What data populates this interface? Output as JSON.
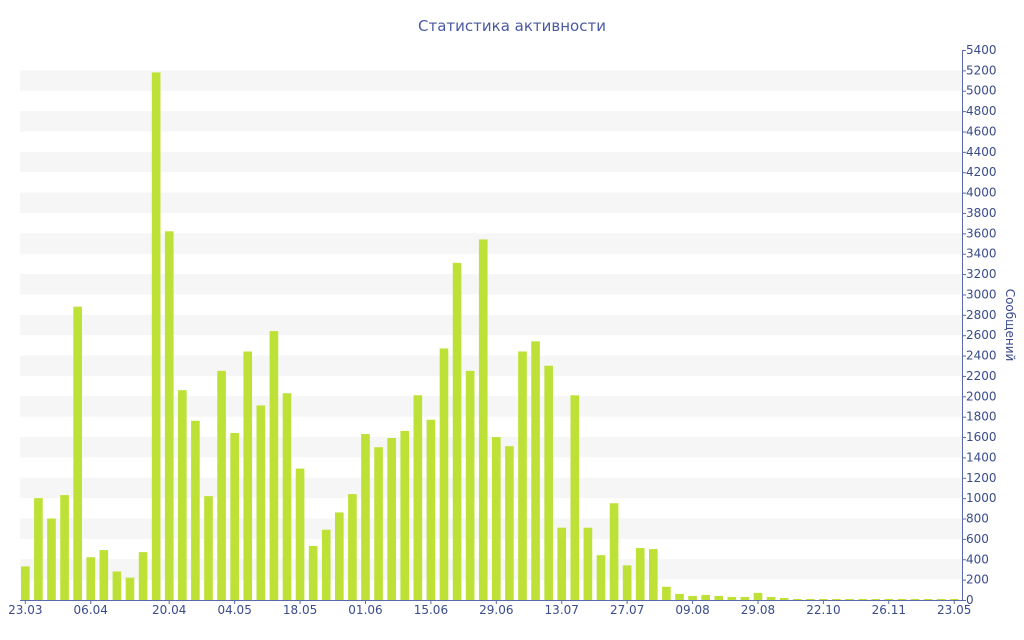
{
  "chart_data": {
    "type": "bar",
    "title": "Статистика активности",
    "ylabel": "Сообщений",
    "xlabel": "",
    "ylim": [
      0,
      5400
    ],
    "y_ticks": [
      0,
      200,
      400,
      600,
      800,
      1000,
      1200,
      1400,
      1600,
      1800,
      2000,
      2200,
      2400,
      2600,
      2800,
      3000,
      3200,
      3400,
      3600,
      3800,
      4000,
      4200,
      4400,
      4600,
      4800,
      5000,
      5200,
      5400
    ],
    "y_axis_side": "right",
    "x_tick_labels": [
      {
        "label": "23.03",
        "index": 0
      },
      {
        "label": "06.04",
        "index": 5
      },
      {
        "label": "20.04",
        "index": 11
      },
      {
        "label": "04.05",
        "index": 16
      },
      {
        "label": "18.05",
        "index": 21
      },
      {
        "label": "01.06",
        "index": 26
      },
      {
        "label": "15.06",
        "index": 31
      },
      {
        "label": "29.06",
        "index": 36
      },
      {
        "label": "13.07",
        "index": 41
      },
      {
        "label": "27.07",
        "index": 46
      },
      {
        "label": "09.08",
        "index": 51
      },
      {
        "label": "29.08",
        "index": 56
      },
      {
        "label": "22.10",
        "index": 61
      },
      {
        "label": "26.11",
        "index": 66
      },
      {
        "label": "23.05",
        "index": 71
      }
    ],
    "values": [
      330,
      1000,
      800,
      1030,
      2880,
      420,
      490,
      280,
      220,
      470,
      5180,
      3620,
      2060,
      1760,
      1020,
      2250,
      1640,
      2440,
      1910,
      2640,
      2030,
      1290,
      530,
      690,
      860,
      1040,
      1630,
      1500,
      1590,
      1660,
      2010,
      1770,
      2470,
      3310,
      2250,
      3540,
      1600,
      1510,
      2440,
      2540,
      2300,
      710,
      2010,
      710,
      440,
      950,
      340,
      510,
      500,
      130,
      60,
      40,
      50,
      40,
      30,
      30,
      70,
      30,
      20,
      10,
      10,
      10,
      10,
      10,
      10,
      10,
      10,
      10,
      10,
      10,
      10,
      10
    ],
    "grid": "alternating horizontal bands",
    "colors": {
      "bar": "#bde136",
      "band": "#f6f6f6",
      "axis": "#5a6aa8",
      "text": "#3a4b8c",
      "title": "#4a5aa0"
    }
  }
}
